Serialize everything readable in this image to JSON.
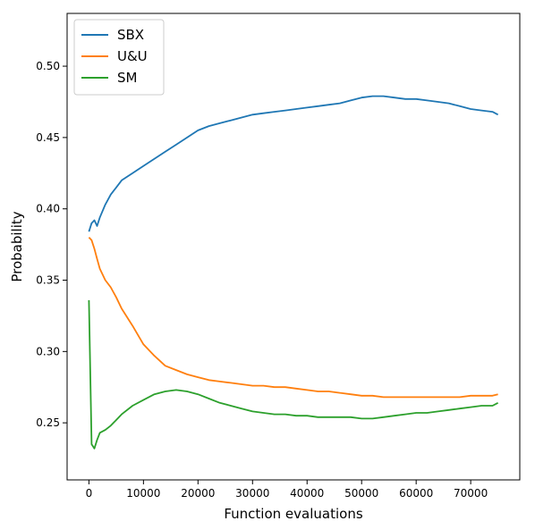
{
  "chart_data": {
    "type": "line",
    "xlabel": "Function evaluations",
    "ylabel": "Probability",
    "xlim": [
      -4000,
      79000
    ],
    "ylim": [
      0.21,
      0.537
    ],
    "xticks": [
      0,
      10000,
      20000,
      30000,
      40000,
      50000,
      60000,
      70000
    ],
    "xtick_labels": [
      "0",
      "10000",
      "20000",
      "30000",
      "40000",
      "50000",
      "60000",
      "70000"
    ],
    "yticks": [
      0.25,
      0.3,
      0.35,
      0.4,
      0.45,
      0.5
    ],
    "ytick_labels": [
      "0.25",
      "0.30",
      "0.35",
      "0.40",
      "0.45",
      "0.50"
    ],
    "grid": false,
    "legend_position": "top-left",
    "series": [
      {
        "name": "SBX",
        "color": "#1f77b4",
        "x": [
          0,
          500,
          1000,
          1500,
          2000,
          3000,
          4000,
          5000,
          6000,
          8000,
          10000,
          12000,
          14000,
          16000,
          18000,
          20000,
          22000,
          24000,
          26000,
          28000,
          30000,
          32000,
          34000,
          36000,
          38000,
          40000,
          42000,
          44000,
          46000,
          48000,
          50000,
          52000,
          54000,
          56000,
          58000,
          60000,
          62000,
          64000,
          66000,
          68000,
          70000,
          72000,
          74000,
          75000
        ],
        "values": [
          0.384,
          0.39,
          0.392,
          0.388,
          0.394,
          0.403,
          0.41,
          0.415,
          0.42,
          0.425,
          0.43,
          0.435,
          0.44,
          0.445,
          0.45,
          0.455,
          0.458,
          0.46,
          0.462,
          0.464,
          0.466,
          0.467,
          0.468,
          0.469,
          0.47,
          0.471,
          0.472,
          0.473,
          0.474,
          0.476,
          0.478,
          0.479,
          0.479,
          0.478,
          0.477,
          0.477,
          0.476,
          0.475,
          0.474,
          0.472,
          0.47,
          0.469,
          0.468,
          0.466
        ]
      },
      {
        "name": "U&U",
        "color": "#ff7f0e",
        "x": [
          0,
          500,
          1000,
          1500,
          2000,
          3000,
          4000,
          5000,
          6000,
          8000,
          10000,
          12000,
          14000,
          16000,
          18000,
          20000,
          22000,
          24000,
          26000,
          28000,
          30000,
          32000,
          34000,
          36000,
          38000,
          40000,
          42000,
          44000,
          46000,
          48000,
          50000,
          52000,
          54000,
          56000,
          58000,
          60000,
          62000,
          64000,
          66000,
          68000,
          70000,
          72000,
          74000,
          75000
        ],
        "values": [
          0.38,
          0.378,
          0.372,
          0.365,
          0.358,
          0.35,
          0.345,
          0.338,
          0.33,
          0.318,
          0.305,
          0.297,
          0.29,
          0.287,
          0.284,
          0.282,
          0.28,
          0.279,
          0.278,
          0.277,
          0.276,
          0.276,
          0.275,
          0.275,
          0.274,
          0.273,
          0.272,
          0.272,
          0.271,
          0.27,
          0.269,
          0.269,
          0.268,
          0.268,
          0.268,
          0.268,
          0.268,
          0.268,
          0.268,
          0.268,
          0.269,
          0.269,
          0.269,
          0.27
        ]
      },
      {
        "name": "SM",
        "color": "#2ca02c",
        "x": [
          0,
          500,
          1000,
          1500,
          2000,
          3000,
          4000,
          5000,
          6000,
          8000,
          10000,
          12000,
          14000,
          16000,
          18000,
          20000,
          22000,
          24000,
          26000,
          28000,
          30000,
          32000,
          34000,
          36000,
          38000,
          40000,
          42000,
          44000,
          46000,
          48000,
          50000,
          52000,
          54000,
          56000,
          58000,
          60000,
          62000,
          64000,
          66000,
          68000,
          70000,
          72000,
          74000,
          75000
        ],
        "values": [
          0.336,
          0.235,
          0.232,
          0.238,
          0.243,
          0.245,
          0.248,
          0.252,
          0.256,
          0.262,
          0.266,
          0.27,
          0.272,
          0.273,
          0.272,
          0.27,
          0.267,
          0.264,
          0.262,
          0.26,
          0.258,
          0.257,
          0.256,
          0.256,
          0.255,
          0.255,
          0.254,
          0.254,
          0.254,
          0.254,
          0.253,
          0.253,
          0.254,
          0.255,
          0.256,
          0.257,
          0.257,
          0.258,
          0.259,
          0.26,
          0.261,
          0.262,
          0.262,
          0.264
        ]
      }
    ]
  }
}
